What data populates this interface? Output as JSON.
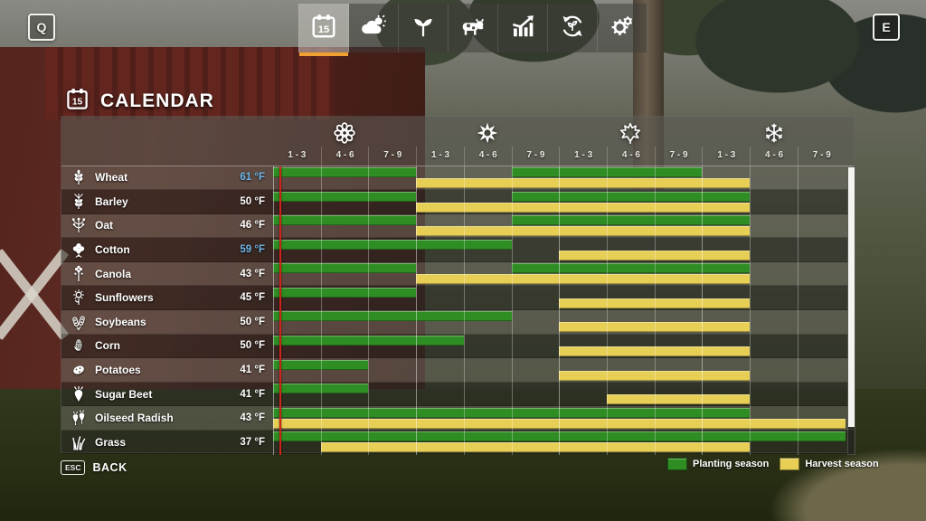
{
  "hud": {
    "key_left": "Q",
    "key_right": "E",
    "esc_label": "ESC",
    "back_label": "BACK"
  },
  "tabs": [
    {
      "icon": "calendar-icon",
      "badge": "15",
      "selected": true
    },
    {
      "icon": "weather-icon",
      "selected": false
    },
    {
      "icon": "crops-icon",
      "selected": false
    },
    {
      "icon": "animals-icon",
      "selected": false
    },
    {
      "icon": "finances-icon",
      "selected": false
    },
    {
      "icon": "season-cycle-icon",
      "selected": false
    },
    {
      "icon": "settings-icon",
      "selected": false
    }
  ],
  "title": {
    "icon": "calendar-icon",
    "badge": "15",
    "label": "CALENDAR"
  },
  "calendar": {
    "seasons": [
      {
        "icon": "flower-icon"
      },
      {
        "icon": "sun-flower-icon"
      },
      {
        "icon": "maple-leaf-icon"
      },
      {
        "icon": "snowflake-icon"
      }
    ],
    "columns": [
      "1 - 3",
      "4 - 6",
      "7 - 9",
      "1 - 3",
      "4 - 6",
      "7 - 9",
      "1 - 3",
      "4 - 6",
      "7 - 9",
      "1 - 3",
      "4 - 6",
      "7 - 9"
    ],
    "current_day_col": 0.14
  },
  "colors": {
    "planting": "#2f8e23",
    "harvest": "#e7cf55",
    "temp_cold": "#6cb6e8",
    "temp_normal": "#ffffff",
    "accent_underline": "#f0a030",
    "current_day_line": "#cf2318"
  },
  "chart_data": {
    "type": "gantt",
    "unit": "season period columns (4 seasons x 3 periods of days 1-3 / 4-6 / 7-9)",
    "season_icons": [
      "flower-icon",
      "sun-flower-icon",
      "maple-leaf-icon",
      "snowflake-icon"
    ],
    "columns": [
      "1 - 3",
      "4 - 6",
      "7 - 9",
      "1 - 3",
      "4 - 6",
      "7 - 9",
      "1 - 3",
      "4 - 6",
      "7 - 9",
      "1 - 3",
      "4 - 6",
      "7 - 9"
    ],
    "rows": [
      {
        "name": "Wheat",
        "temp": "61 °F",
        "temp_cold": true,
        "icon": "wheat-icon",
        "plant": [
          [
            0,
            3
          ],
          [
            5,
            9
          ]
        ],
        "harvest": [
          [
            3,
            10
          ]
        ]
      },
      {
        "name": "Barley",
        "temp": "50 °F",
        "temp_cold": false,
        "icon": "barley-icon",
        "plant": [
          [
            0,
            3
          ],
          [
            5,
            10
          ]
        ],
        "harvest": [
          [
            3,
            10
          ]
        ]
      },
      {
        "name": "Oat",
        "temp": "46 °F",
        "temp_cold": false,
        "icon": "oat-icon",
        "plant": [
          [
            0,
            3
          ],
          [
            5,
            10
          ]
        ],
        "harvest": [
          [
            3,
            10
          ]
        ]
      },
      {
        "name": "Cotton",
        "temp": "59 °F",
        "temp_cold": true,
        "icon": "cotton-icon",
        "plant": [
          [
            0,
            5
          ]
        ],
        "harvest": [
          [
            6,
            10
          ]
        ]
      },
      {
        "name": "Canola",
        "temp": "43 °F",
        "temp_cold": false,
        "icon": "canola-icon",
        "plant": [
          [
            0,
            3
          ],
          [
            5,
            10
          ]
        ],
        "harvest": [
          [
            3,
            10
          ]
        ]
      },
      {
        "name": "Sunflowers",
        "temp": "45 °F",
        "temp_cold": false,
        "icon": "sunflower-icon",
        "plant": [
          [
            0,
            3
          ]
        ],
        "harvest": [
          [
            6,
            10
          ]
        ]
      },
      {
        "name": "Soybeans",
        "temp": "50 °F",
        "temp_cold": false,
        "icon": "soybean-icon",
        "plant": [
          [
            0,
            5
          ]
        ],
        "harvest": [
          [
            6,
            10
          ]
        ]
      },
      {
        "name": "Corn",
        "temp": "50 °F",
        "temp_cold": false,
        "icon": "corn-icon",
        "plant": [
          [
            0,
            4
          ]
        ],
        "harvest": [
          [
            6,
            10
          ]
        ]
      },
      {
        "name": "Potatoes",
        "temp": "41 °F",
        "temp_cold": false,
        "icon": "potato-icon",
        "plant": [
          [
            0,
            2
          ]
        ],
        "harvest": [
          [
            6,
            10
          ]
        ]
      },
      {
        "name": "Sugar Beet",
        "temp": "41 °F",
        "temp_cold": false,
        "icon": "sugar-beet-icon",
        "plant": [
          [
            0,
            2
          ]
        ],
        "harvest": [
          [
            7,
            10
          ]
        ]
      },
      {
        "name": "Oilseed Radish",
        "temp": "43 °F",
        "temp_cold": false,
        "icon": "oilseed-radish-icon",
        "plant": [
          [
            0,
            10
          ]
        ],
        "harvest": [
          [
            0,
            12
          ]
        ]
      },
      {
        "name": "Grass",
        "temp": "37 °F",
        "temp_cold": false,
        "icon": "grass-icon",
        "plant": [
          [
            0,
            12
          ]
        ],
        "harvest": [
          [
            1,
            10
          ]
        ]
      }
    ]
  },
  "legend": [
    {
      "label": "Planting season",
      "color": "#2f8e23"
    },
    {
      "label": "Harvest season",
      "color": "#e7cf55"
    }
  ]
}
